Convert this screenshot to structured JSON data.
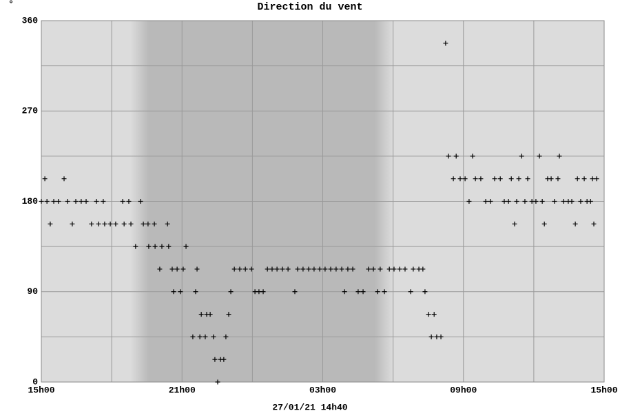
{
  "chart_data": {
    "type": "scatter",
    "title": "Direction du vent",
    "y_unit": "°",
    "footer": "27/01/21 14h40",
    "marker_color": "#000000",
    "grid": true,
    "night": [
      3.8,
      15.0
    ],
    "xlim": [
      0,
      24
    ],
    "xticks": [
      {
        "value": 0,
        "label": "15h00"
      },
      {
        "value": 6,
        "label": "21h00"
      },
      {
        "value": 12,
        "label": "03h00"
      },
      {
        "value": 18,
        "label": "09h00"
      },
      {
        "value": 24,
        "label": "15h00"
      }
    ],
    "xminor": [
      3,
      9,
      15,
      21
    ],
    "ylim": [
      0,
      360
    ],
    "yticks": [
      0,
      90,
      180,
      270,
      360
    ],
    "yminor": [
      45,
      135,
      225,
      315
    ],
    "x": [
      0.0,
      0.15,
      0.24,
      0.38,
      0.53,
      0.73,
      0.97,
      1.12,
      1.32,
      1.47,
      1.7,
      1.91,
      2.14,
      2.35,
      2.44,
      2.64,
      2.7,
      2.94,
      3.17,
      3.47,
      3.53,
      3.73,
      3.82,
      4.02,
      4.23,
      4.35,
      4.55,
      4.82,
      4.58,
      4.85,
      5.05,
      5.14,
      5.38,
      5.43,
      5.58,
      5.64,
      5.79,
      5.93,
      6.05,
      6.17,
      6.46,
      6.58,
      6.64,
      6.76,
      6.82,
      6.99,
      7.05,
      7.2,
      7.34,
      7.4,
      7.52,
      7.64,
      7.78,
      7.87,
      7.99,
      8.08,
      8.23,
      8.46,
      8.7,
      8.96,
      9.11,
      9.28,
      9.46,
      9.64,
      9.84,
      10.05,
      10.28,
      10.52,
      10.81,
      10.93,
      11.16,
      11.4,
      11.63,
      11.87,
      12.1,
      12.34,
      12.57,
      12.81,
      12.93,
      13.07,
      13.28,
      13.51,
      13.72,
      13.95,
      14.16,
      14.34,
      14.45,
      14.63,
      14.84,
      15.04,
      15.28,
      15.51,
      15.75,
      15.86,
      16.1,
      16.27,
      16.36,
      16.51,
      16.63,
      16.75,
      16.86,
      17.04,
      17.24,
      17.36,
      17.57,
      17.69,
      17.86,
      18.07,
      18.24,
      18.39,
      18.51,
      18.74,
      18.95,
      19.15,
      19.33,
      19.57,
      19.74,
      19.92,
      20.04,
      20.18,
      20.27,
      20.36,
      20.48,
      20.62,
      20.74,
      20.92,
      21.09,
      21.24,
      21.36,
      21.45,
      21.59,
      21.74,
      21.88,
      22.03,
      22.09,
      22.27,
      22.47,
      22.62,
      22.77,
      22.86,
      23.0,
      23.15,
      23.27,
      23.42,
      23.56,
      23.5,
      23.68
    ],
    "values": [
      180,
      202.5,
      180,
      157.5,
      180,
      180,
      202.5,
      180,
      157.5,
      180,
      180,
      180,
      157.5,
      180,
      157.5,
      180,
      157.5,
      157.5,
      157.5,
      180,
      157.5,
      180,
      157.5,
      135,
      180,
      157.5,
      157.5,
      157.5,
      135,
      135,
      112.5,
      135,
      157.5,
      135,
      112.5,
      90,
      112.5,
      90,
      112.5,
      135,
      45,
      90,
      112.5,
      45,
      67.5,
      45,
      67.5,
      67.5,
      45,
      22.5,
      0,
      22.5,
      22.5,
      45,
      67.5,
      90,
      112.5,
      112.5,
      112.5,
      112.5,
      90,
      90,
      90,
      112.5,
      112.5,
      112.5,
      112.5,
      112.5,
      90,
      112.5,
      112.5,
      112.5,
      112.5,
      112.5,
      112.5,
      112.5,
      112.5,
      112.5,
      90,
      112.5,
      112.5,
      90,
      90,
      112.5,
      112.5,
      90,
      112.5,
      90,
      112.5,
      112.5,
      112.5,
      112.5,
      90,
      112.5,
      112.5,
      112.5,
      90,
      67.5,
      45,
      67.5,
      45,
      45,
      337.5,
      225,
      202.5,
      225,
      202.5,
      202.5,
      180,
      225,
      202.5,
      202.5,
      180,
      180,
      202.5,
      202.5,
      180,
      180,
      202.5,
      157.5,
      180,
      202.5,
      225,
      180,
      202.5,
      180,
      180,
      225,
      180,
      157.5,
      202.5,
      202.5,
      180,
      202.5,
      225,
      180,
      180,
      180,
      157.5,
      202.5,
      180,
      202.5,
      180,
      180,
      157.5,
      202.5,
      202.5
    ]
  }
}
